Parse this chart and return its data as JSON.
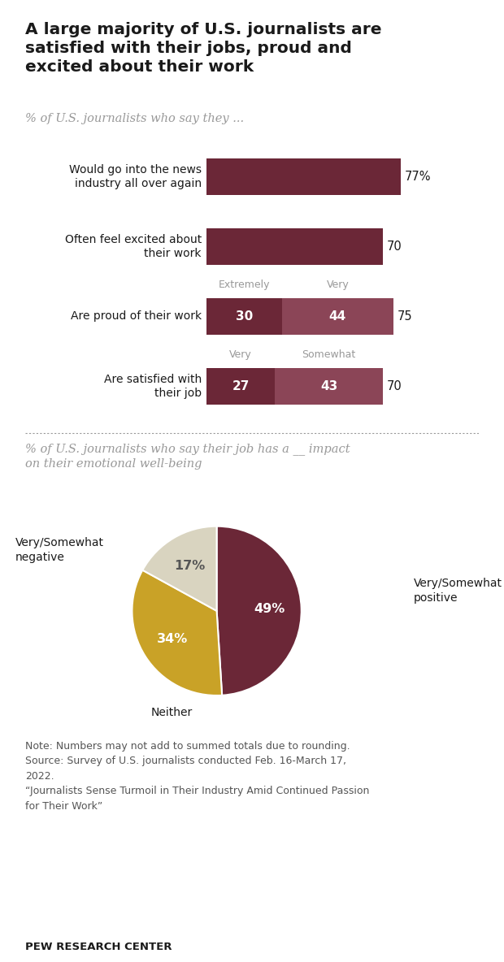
{
  "title": "A large majority of U.S. journalists are\nsatisfied with their jobs, proud and\nexcited about their work",
  "subtitle_bar": "% of U.S. journalists who say they ...",
  "subtitle_pie": "% of U.S. journalists who say their job has a __ impact\non their emotional well-being",
  "bar_color_dark": "#6b2737",
  "bar_color_light": "#8b4557",
  "bar_max": 100,
  "pie_values": [
    49,
    34,
    17
  ],
  "pie_colors": [
    "#6b2737",
    "#c9a227",
    "#d9d4c0"
  ],
  "note": "Note: Numbers may not add to summed totals due to rounding.\nSource: Survey of U.S. journalists conducted Feb. 16-March 17,\n2022.\n“Journalists Sense Turmoil in Their Industry Amid Continued Passion\nfor Their Work”",
  "source_label": "PEW RESEARCH CENTER",
  "bg_color": "#ffffff",
  "text_color": "#1a1a1a",
  "gray_text": "#999999"
}
